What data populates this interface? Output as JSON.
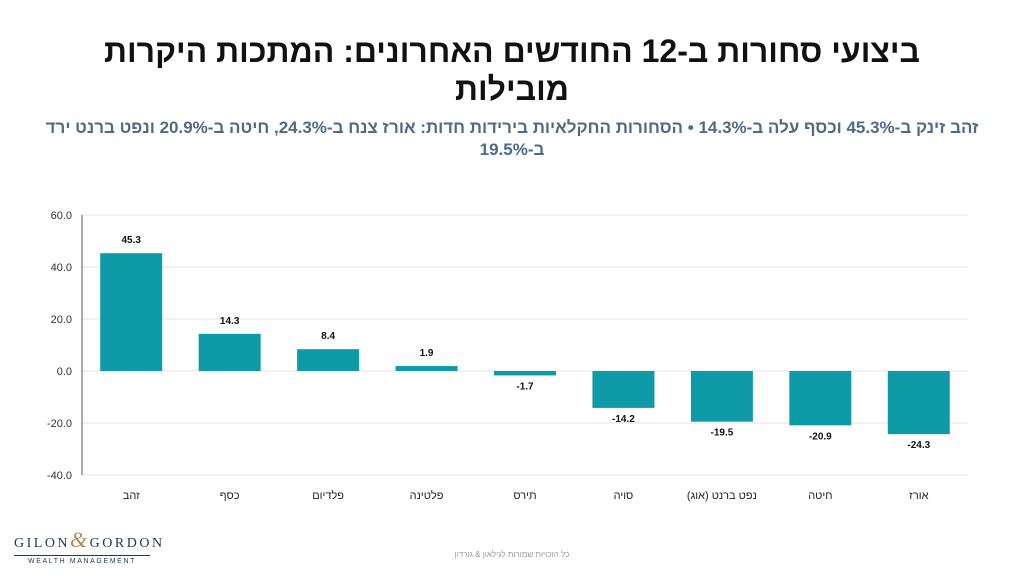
{
  "title": "ביצועי סחורות ב-12 החודשים האחרונים: המתכות היקרות מובילות",
  "subtitle": "זהב זינק ב-45.3% וכסף עלה ב-14.3% • הסחורות החקלאיות בירידות חדות: אורז צנח ב-24.3%, חיטה ב-20.9% ונפט ברנט ירד ב-19.5%",
  "logo": {
    "left": "GILON",
    "amp": "&",
    "right": "GORDON",
    "sub": "WEALTH MANAGEMENT"
  },
  "footer": "כל הזכויות שמורות לגילאון & גורדון",
  "colors": {
    "bar": "#0e9aa7",
    "grid": "#e3e3e3",
    "axis": "#555555"
  },
  "chart_data": {
    "type": "bar",
    "categories": [
      "זהב",
      "כסף",
      "פלדיום",
      "פלטינה",
      "תירס",
      "סויה",
      "נפט ברנט (אוג)",
      "חיטה",
      "אורז"
    ],
    "values": [
      45.3,
      14.3,
      8.4,
      1.9,
      -1.7,
      -14.2,
      -19.5,
      -20.9,
      -24.3
    ],
    "value_labels": [
      "45.3",
      "14.3",
      "8.4",
      "1.9",
      "-1.7",
      "-14.2",
      "-19.5",
      "-20.9",
      "-24.3"
    ],
    "y_ticks": [
      "60.0",
      "40.0",
      "20.0",
      "0.0",
      "-20.0",
      "-40.0"
    ],
    "ylim": [
      -40,
      60
    ],
    "grid": true,
    "legend": "none"
  }
}
